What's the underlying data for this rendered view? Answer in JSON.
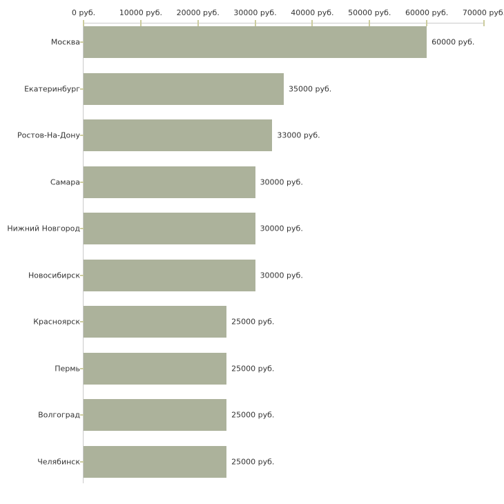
{
  "chart_data": {
    "type": "bar",
    "orientation": "horizontal",
    "categories": [
      "Москва",
      "Екатеринбург",
      "Ростов-На-Дону",
      "Самара",
      "Нижний Новгород",
      "Новосибирск",
      "Красноярск",
      "Пермь",
      "Волгоград",
      "Челябинск"
    ],
    "values": [
      60000,
      35000,
      33000,
      30000,
      30000,
      30000,
      25000,
      25000,
      25000,
      25000
    ],
    "value_labels": [
      "60000 руб.",
      "35000 руб.",
      "33000 руб.",
      "30000 руб.",
      "30000 руб.",
      "30000 руб.",
      "25000 руб.",
      "25000 руб.",
      "25000 руб.",
      "25000 руб."
    ],
    "unit": "руб.",
    "xlim": [
      0,
      70000
    ],
    "x_ticks": [
      0,
      10000,
      20000,
      30000,
      40000,
      50000,
      60000,
      70000
    ],
    "x_tick_labels": [
      "0 руб.",
      "10000 руб.",
      "20000 руб.",
      "30000 руб.",
      "40000 руб.",
      "50000 руб.",
      "60000 руб.",
      "70000 руб."
    ],
    "grid": false,
    "legend": null,
    "colors": {
      "bar": "#acb29b",
      "axis_line": "#c9c9c9",
      "tick_mark": "#cccc9e",
      "label_text": "#333333",
      "background": "#ffffff"
    }
  }
}
